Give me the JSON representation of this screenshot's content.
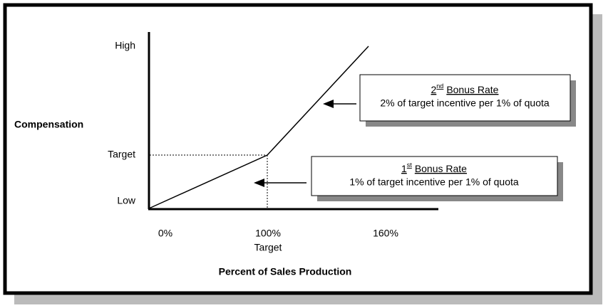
{
  "y_axis": {
    "title": "Compensation",
    "labels": [
      "High",
      "Target",
      "Low"
    ]
  },
  "x_axis": {
    "title": "Percent of Sales Production",
    "labels": [
      "0%",
      "100%",
      "160%"
    ],
    "sublabel": "Target"
  },
  "callouts": [
    {
      "ordinal": "2",
      "suffix": "nd",
      "title": "Bonus Rate",
      "text": "2% of target incentive per 1% of quota"
    },
    {
      "ordinal": "1",
      "suffix": "st",
      "title": "Bonus Rate",
      "text": "1% of target incentive per 1% of quota"
    }
  ]
}
